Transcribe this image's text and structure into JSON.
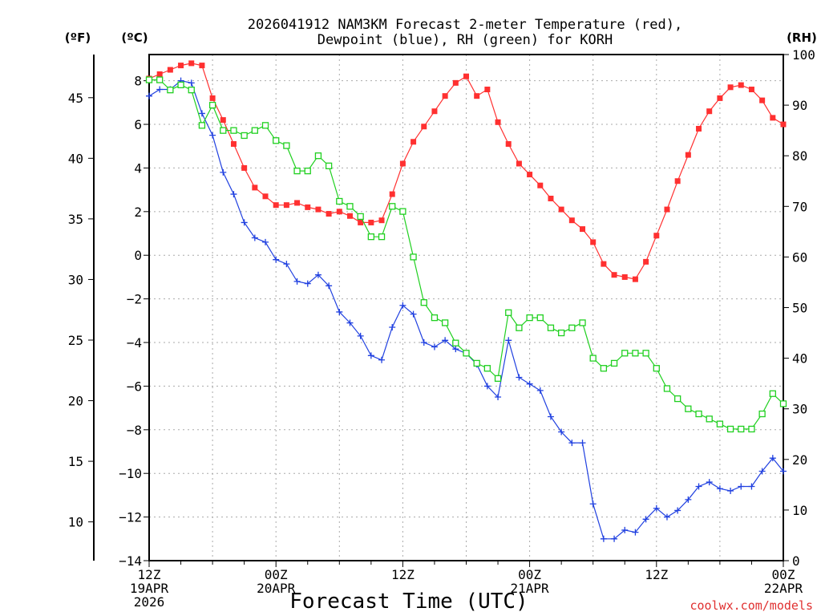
{
  "chart_data": {
    "type": "line",
    "title_line1": "2026041912 NAM3KM Forecast 2-meter Temperature (red),",
    "title_line2": "Dewpoint (blue), RH (green) for KORH",
    "unit_f": "(ºF)",
    "unit_c": "(ºC)",
    "unit_rh": "(RH)",
    "xlabel": "Forecast Time (UTC)",
    "credit": "coolwx.com/models",
    "x_range_hours": [
      0,
      60
    ],
    "c_range": [
      -14,
      9.2
    ],
    "rh_range": [
      0,
      100
    ],
    "c_ticks": [
      -14,
      -12,
      -10,
      -8,
      -6,
      -4,
      -2,
      0,
      2,
      4,
      6,
      8
    ],
    "f_ticks": [
      10,
      15,
      20,
      25,
      30,
      35,
      40,
      45
    ],
    "rh_ticks": [
      0,
      10,
      20,
      30,
      40,
      50,
      60,
      70,
      80,
      90,
      100
    ],
    "x_ticks": [
      {
        "hour": 0,
        "lines": [
          "12Z",
          "19APR",
          "2026"
        ]
      },
      {
        "hour": 12,
        "lines": [
          "00Z",
          "20APR"
        ]
      },
      {
        "hour": 24,
        "lines": [
          "12Z"
        ]
      },
      {
        "hour": 36,
        "lines": [
          "00Z",
          "21APR"
        ]
      },
      {
        "hour": 48,
        "lines": [
          "12Z"
        ]
      },
      {
        "hour": 60,
        "lines": [
          "00Z",
          "22APR"
        ]
      }
    ],
    "series": [
      {
        "name": "Temperature",
        "unit": "C",
        "color": "#ff3030",
        "marker": "filled-square",
        "values": [
          8.1,
          8.3,
          8.5,
          8.7,
          8.8,
          8.7,
          7.2,
          6.2,
          5.1,
          4.0,
          3.1,
          2.7,
          2.3,
          2.3,
          2.4,
          2.2,
          2.1,
          1.9,
          2.0,
          1.8,
          1.5,
          1.5,
          1.6,
          2.8,
          4.2,
          5.2,
          5.9,
          6.6,
          7.3,
          7.9,
          8.2,
          7.3,
          7.6,
          6.1,
          5.1,
          4.2,
          3.7,
          3.2,
          2.6,
          2.1,
          1.6,
          1.2,
          0.6,
          -0.4,
          -0.9,
          -1.0,
          -1.1,
          -0.3,
          0.9,
          2.1,
          3.4,
          4.6,
          5.8,
          6.6,
          7.2,
          7.7,
          7.8,
          7.6,
          7.1,
          6.3,
          6.0
        ]
      },
      {
        "name": "Dewpoint",
        "unit": "C",
        "color": "#2040e0",
        "marker": "plus",
        "values": [
          7.3,
          7.6,
          7.6,
          8.0,
          7.9,
          6.5,
          5.5,
          3.8,
          2.8,
          1.5,
          0.8,
          0.6,
          -0.2,
          -0.4,
          -1.2,
          -1.3,
          -0.9,
          -1.4,
          -2.6,
          -3.1,
          -3.7,
          -4.6,
          -4.8,
          -3.3,
          -2.3,
          -2.7,
          -4.0,
          -4.2,
          -3.9,
          -4.3,
          -4.5,
          -5.0,
          -6.0,
          -6.5,
          -3.9,
          -5.6,
          -5.9,
          -6.2,
          -7.4,
          -8.1,
          -8.6,
          -8.6,
          -11.4,
          -13.0,
          -13.0,
          -12.6,
          -12.7,
          -12.1,
          -11.6,
          -12.0,
          -11.7,
          -11.2,
          -10.6,
          -10.4,
          -10.7,
          -10.8,
          -10.6,
          -10.6,
          -9.9,
          -9.3,
          -9.9
        ]
      },
      {
        "name": "RH",
        "unit": "%",
        "color": "#20d020",
        "marker": "open-square",
        "values": [
          95,
          95,
          93,
          94,
          93,
          86,
          90,
          85,
          85,
          84,
          85,
          86,
          83,
          82,
          77,
          77,
          80,
          78,
          71,
          70,
          68,
          64,
          64,
          70,
          69,
          60,
          51,
          48,
          47,
          43,
          41,
          39,
          38,
          36,
          49,
          46,
          48,
          48,
          46,
          45,
          46,
          47,
          40,
          38,
          39,
          41,
          41,
          41,
          38,
          34,
          32,
          30,
          29,
          28,
          27,
          26,
          26,
          26,
          29,
          33,
          31
        ]
      }
    ]
  }
}
